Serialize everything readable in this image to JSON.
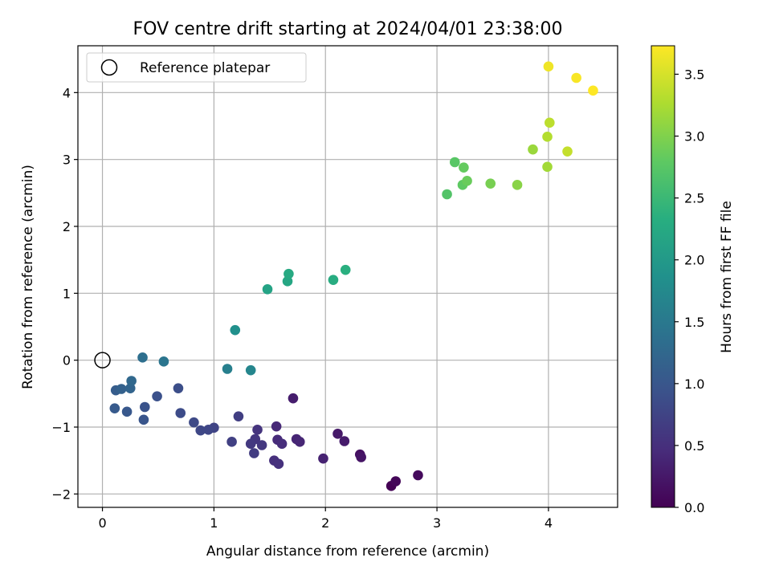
{
  "chart_data": {
    "type": "scatter",
    "title": "FOV centre drift starting at 2024/04/01 23:38:00",
    "xlabel": "Angular distance from reference (arcmin)",
    "ylabel": "Rotation from reference (arcmin)",
    "xlim": [
      -0.22,
      4.62
    ],
    "ylim": [
      -2.2,
      4.7
    ],
    "xticks": [
      0,
      1,
      2,
      3,
      4
    ],
    "yticks": [
      -2,
      -1,
      0,
      1,
      2,
      3,
      4
    ],
    "xtick_labels": [
      "0",
      "1",
      "2",
      "3",
      "4"
    ],
    "ytick_labels": [
      "−2",
      "−1",
      "0",
      "1",
      "2",
      "3",
      "4"
    ],
    "grid": true,
    "legend": {
      "placement": "upper-left",
      "entries": [
        "Reference platepar"
      ]
    },
    "reference_point": {
      "x": 0,
      "y": 0
    },
    "colorbar": {
      "label": "Hours from first FF file",
      "colormap": "viridis",
      "range": [
        0.0,
        3.73
      ],
      "ticks": [
        0.0,
        0.5,
        1.0,
        1.5,
        2.0,
        2.5,
        3.0,
        3.5
      ],
      "tick_labels": [
        "0.0",
        "0.5",
        "1.0",
        "1.5",
        "2.0",
        "2.5",
        "3.0",
        "3.5"
      ]
    },
    "points": [
      {
        "x": 2.59,
        "y": -1.88,
        "c": 0.0
      },
      {
        "x": 2.63,
        "y": -1.81,
        "c": 0.05
      },
      {
        "x": 2.83,
        "y": -1.72,
        "c": 0.1
      },
      {
        "x": 2.31,
        "y": -1.41,
        "c": 0.15
      },
      {
        "x": 2.32,
        "y": -1.45,
        "c": 0.2
      },
      {
        "x": 2.11,
        "y": -1.1,
        "c": 0.25
      },
      {
        "x": 2.17,
        "y": -1.21,
        "c": 0.28
      },
      {
        "x": 1.71,
        "y": -0.57,
        "c": 0.3
      },
      {
        "x": 1.98,
        "y": -1.47,
        "c": 0.35
      },
      {
        "x": 1.74,
        "y": -1.18,
        "c": 0.38
      },
      {
        "x": 1.77,
        "y": -1.22,
        "c": 0.4
      },
      {
        "x": 1.56,
        "y": -0.99,
        "c": 0.42
      },
      {
        "x": 1.57,
        "y": -1.19,
        "c": 0.45
      },
      {
        "x": 1.61,
        "y": -1.25,
        "c": 0.48
      },
      {
        "x": 1.54,
        "y": -1.5,
        "c": 0.5
      },
      {
        "x": 1.58,
        "y": -1.55,
        "c": 0.52
      },
      {
        "x": 1.39,
        "y": -1.04,
        "c": 0.55
      },
      {
        "x": 1.37,
        "y": -1.18,
        "c": 0.58
      },
      {
        "x": 1.43,
        "y": -1.27,
        "c": 0.6
      },
      {
        "x": 1.33,
        "y": -1.25,
        "c": 0.62
      },
      {
        "x": 1.36,
        "y": -1.39,
        "c": 0.65
      },
      {
        "x": 1.22,
        "y": -0.84,
        "c": 0.68
      },
      {
        "x": 1.16,
        "y": -1.22,
        "c": 0.7
      },
      {
        "x": 1.0,
        "y": -1.01,
        "c": 0.75
      },
      {
        "x": 0.95,
        "y": -1.04,
        "c": 0.78
      },
      {
        "x": 0.88,
        "y": -1.05,
        "c": 0.8
      },
      {
        "x": 0.82,
        "y": -0.93,
        "c": 0.83
      },
      {
        "x": 0.7,
        "y": -0.79,
        "c": 0.86
      },
      {
        "x": 0.68,
        "y": -0.42,
        "c": 0.88
      },
      {
        "x": 0.49,
        "y": -0.54,
        "c": 0.92
      },
      {
        "x": 0.38,
        "y": -0.7,
        "c": 0.95
      },
      {
        "x": 0.37,
        "y": -0.89,
        "c": 0.98
      },
      {
        "x": 0.22,
        "y": -0.77,
        "c": 1.02
      },
      {
        "x": 0.11,
        "y": -0.72,
        "c": 1.05
      },
      {
        "x": 0.12,
        "y": -0.45,
        "c": 1.1
      },
      {
        "x": 0.17,
        "y": -0.43,
        "c": 1.15
      },
      {
        "x": 0.25,
        "y": -0.42,
        "c": 1.2
      },
      {
        "x": 0.26,
        "y": -0.31,
        "c": 1.25
      },
      {
        "x": 0.36,
        "y": 0.04,
        "c": 1.35
      },
      {
        "x": 0.55,
        "y": -0.02,
        "c": 1.45
      },
      {
        "x": 1.12,
        "y": -0.13,
        "c": 1.6
      },
      {
        "x": 1.33,
        "y": -0.15,
        "c": 1.7
      },
      {
        "x": 1.19,
        "y": 0.45,
        "c": 1.85
      },
      {
        "x": 1.48,
        "y": 1.06,
        "c": 2.15
      },
      {
        "x": 1.66,
        "y": 1.18,
        "c": 2.2
      },
      {
        "x": 1.67,
        "y": 1.29,
        "c": 2.25
      },
      {
        "x": 2.07,
        "y": 1.2,
        "c": 2.3
      },
      {
        "x": 2.18,
        "y": 1.35,
        "c": 2.35
      },
      {
        "x": 3.09,
        "y": 2.48,
        "c": 2.7
      },
      {
        "x": 3.16,
        "y": 2.96,
        "c": 2.75
      },
      {
        "x": 3.23,
        "y": 2.62,
        "c": 2.8
      },
      {
        "x": 3.24,
        "y": 2.88,
        "c": 2.83
      },
      {
        "x": 3.27,
        "y": 2.68,
        "c": 2.86
      },
      {
        "x": 3.48,
        "y": 2.64,
        "c": 2.95
      },
      {
        "x": 3.72,
        "y": 2.62,
        "c": 3.05
      },
      {
        "x": 3.86,
        "y": 3.15,
        "c": 3.15
      },
      {
        "x": 3.99,
        "y": 2.89,
        "c": 3.2
      },
      {
        "x": 3.99,
        "y": 3.34,
        "c": 3.3
      },
      {
        "x": 4.01,
        "y": 3.55,
        "c": 3.35
      },
      {
        "x": 4.17,
        "y": 3.12,
        "c": 3.4
      },
      {
        "x": 4.0,
        "y": 4.39,
        "c": 3.65
      },
      {
        "x": 4.25,
        "y": 4.22,
        "c": 3.7
      },
      {
        "x": 4.4,
        "y": 4.03,
        "c": 3.73
      }
    ]
  }
}
